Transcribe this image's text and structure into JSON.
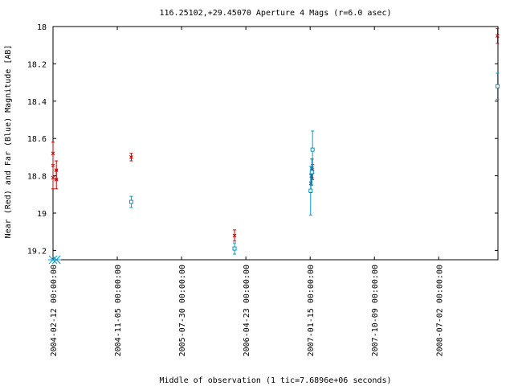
{
  "chart_data": {
    "type": "scatter",
    "title": "116.25102,+29.45070   Aperture 4 Mags (r=6.0 asec)",
    "xlabel": "Middle of observation (1 tic=7.6896e+06 seconds)",
    "ylabel": "Near (Red) and Far (Blue) Magnitude [AB]",
    "y_inverted": true,
    "ylim": [
      19.25,
      18.0
    ],
    "xlim": [
      "2004-02-12",
      "2009-03-05"
    ],
    "yticks": [
      "18",
      "18.2",
      "18.4",
      "18.6",
      "18.8",
      "19",
      "19.2"
    ],
    "xticks": [
      "2004-02-12 00:00:00",
      "2004-11-05 00:00:00",
      "2005-07-30 00:00:00",
      "2006-04-23 00:00:00",
      "2007-01-15 00:00:00",
      "2007-10-09 00:00:00",
      "2008-07-02 00:00:00"
    ],
    "grid": false,
    "series": [
      {
        "name": "Near",
        "color": "#cc0000",
        "marker": "x",
        "points": [
          {
            "x": "2004-02-12",
            "y": 18.68,
            "err": 0.06
          },
          {
            "x": "2004-02-12",
            "y": 18.81,
            "err": 0.06
          },
          {
            "x": "2004-02-26",
            "y": 18.77,
            "err": 0.05
          },
          {
            "x": "2004-02-26",
            "y": 18.82,
            "err": 0.05
          },
          {
            "x": "2005-01-02",
            "y": 18.7,
            "err": 0.02
          },
          {
            "x": "2006-03-07",
            "y": 19.12,
            "err": 0.03
          },
          {
            "x": "2007-01-18",
            "y": 18.84,
            "err": 0.05
          },
          {
            "x": "2007-01-20",
            "y": 18.8,
            "err": 0.05
          },
          {
            "x": "2007-01-23",
            "y": 18.76,
            "err": 0.05
          },
          {
            "x": "2007-01-25",
            "y": 18.78,
            "err": 0.04
          },
          {
            "x": "2009-03-03",
            "y": 18.05,
            "err": 0.04
          }
        ]
      },
      {
        "name": "Far",
        "color": "#0099cc",
        "marker": "square",
        "points": [
          {
            "x": "2005-01-02",
            "y": 18.94,
            "err": 0.03
          },
          {
            "x": "2006-03-07",
            "y": 19.19,
            "err": 0.03
          },
          {
            "x": "2007-01-17",
            "y": 18.88,
            "err": 0.13
          },
          {
            "x": "2007-01-22",
            "y": 18.78,
            "err": 0.07
          },
          {
            "x": "2007-01-25",
            "y": 18.66,
            "err": 0.1
          },
          {
            "x": "2009-03-03",
            "y": 18.32,
            "err": 0.07
          }
        ]
      },
      {
        "name": "Far (lower limit)",
        "color": "#0099cc",
        "marker": "star",
        "points": [
          {
            "x": "2004-02-12",
            "y": 19.25
          },
          {
            "x": "2004-02-26",
            "y": 19.25
          }
        ]
      }
    ]
  }
}
